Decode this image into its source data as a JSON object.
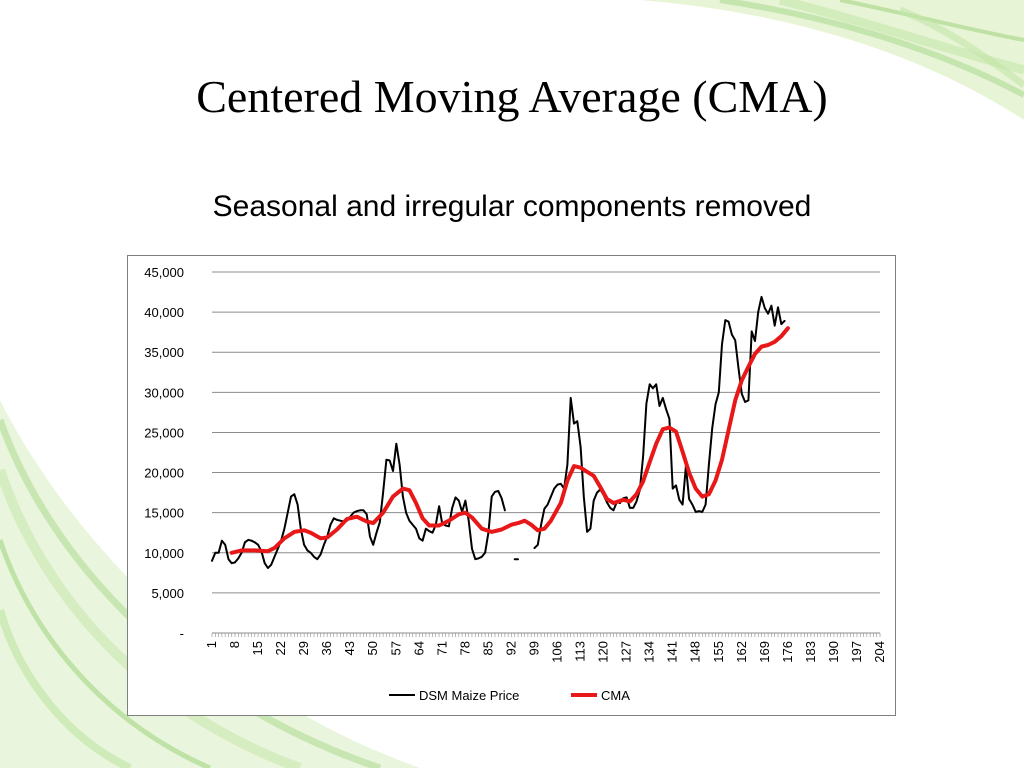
{
  "slide": {
    "title": "Centered Moving Average (CMA)",
    "subtitle": "Seasonal and irregular components removed"
  },
  "theme": {
    "accent_green": "#8cc63f",
    "light_green": "#d6eeb8"
  },
  "chart_data": {
    "type": "line",
    "ylim": [
      0,
      45000
    ],
    "yticks": [
      "-",
      "5,000",
      "10,000",
      "15,000",
      "20,000",
      "25,000",
      "30,000",
      "35,000",
      "40,000",
      "45,000"
    ],
    "xlim": [
      1,
      204
    ],
    "xticks": [
      1,
      8,
      15,
      22,
      29,
      36,
      43,
      50,
      57,
      64,
      71,
      78,
      85,
      92,
      99,
      106,
      113,
      120,
      127,
      134,
      141,
      148,
      155,
      162,
      169,
      176,
      183,
      190,
      197,
      204
    ],
    "grid": "horizontal",
    "legend_position": "bottom",
    "series": [
      {
        "name": "DSM Maize Price",
        "color": "#000000",
        "points": [
          [
            1,
            9000
          ],
          [
            2,
            10000
          ],
          [
            3,
            10000
          ],
          [
            4,
            11500
          ],
          [
            5,
            11000
          ],
          [
            6,
            9200
          ],
          [
            7,
            8700
          ],
          [
            8,
            8800
          ],
          [
            9,
            9300
          ],
          [
            10,
            10000
          ],
          [
            11,
            11300
          ],
          [
            12,
            11600
          ],
          [
            13,
            11500
          ],
          [
            14,
            11300
          ],
          [
            15,
            11000
          ],
          [
            16,
            10200
          ],
          [
            17,
            8700
          ],
          [
            18,
            8100
          ],
          [
            19,
            8500
          ],
          [
            20,
            9500
          ],
          [
            21,
            10500
          ],
          [
            22,
            11500
          ],
          [
            23,
            13000
          ],
          [
            24,
            15000
          ],
          [
            25,
            17000
          ],
          [
            26,
            17300
          ],
          [
            27,
            16000
          ],
          [
            28,
            13000
          ],
          [
            29,
            11000
          ],
          [
            30,
            10300
          ],
          [
            31,
            10000
          ],
          [
            32,
            9500
          ],
          [
            33,
            9200
          ],
          [
            34,
            9800
          ],
          [
            35,
            11000
          ],
          [
            36,
            12000
          ],
          [
            37,
            13500
          ],
          [
            38,
            14300
          ],
          [
            39,
            14100
          ],
          [
            40,
            14000
          ],
          [
            41,
            13900
          ],
          [
            42,
            14000
          ],
          [
            43,
            14500
          ],
          [
            44,
            15000
          ],
          [
            45,
            15200
          ],
          [
            46,
            15300
          ],
          [
            47,
            15300
          ],
          [
            48,
            14800
          ],
          [
            49,
            12000
          ],
          [
            50,
            11000
          ],
          [
            51,
            12500
          ],
          [
            52,
            13800
          ],
          [
            53,
            17500
          ],
          [
            54,
            21600
          ],
          [
            55,
            21500
          ],
          [
            56,
            20200
          ],
          [
            57,
            23600
          ],
          [
            58,
            21000
          ],
          [
            59,
            17000
          ],
          [
            60,
            15000
          ],
          [
            61,
            14000
          ],
          [
            62,
            13500
          ],
          [
            63,
            13000
          ],
          [
            64,
            11800
          ],
          [
            65,
            11500
          ],
          [
            66,
            13000
          ],
          [
            67,
            12700
          ],
          [
            68,
            12500
          ],
          [
            69,
            13500
          ],
          [
            70,
            15800
          ],
          [
            71,
            13600
          ],
          [
            72,
            13400
          ],
          [
            73,
            13300
          ],
          [
            74,
            15600
          ],
          [
            75,
            16900
          ],
          [
            76,
            16500
          ],
          [
            77,
            15100
          ],
          [
            78,
            16500
          ],
          [
            79,
            14000
          ],
          [
            80,
            10500
          ],
          [
            81,
            9200
          ],
          [
            82,
            9300
          ],
          [
            83,
            9500
          ],
          [
            84,
            10000
          ],
          [
            85,
            12500
          ],
          [
            86,
            17000
          ],
          [
            87,
            17600
          ],
          [
            88,
            17700
          ],
          [
            89,
            16800
          ],
          [
            90,
            15300
          ],
          null,
          [
            93,
            9200
          ],
          [
            94,
            9200
          ],
          null,
          [
            99,
            10600
          ],
          [
            100,
            11000
          ],
          [
            101,
            13500
          ],
          [
            102,
            15500
          ],
          [
            103,
            16000
          ],
          [
            104,
            17000
          ],
          [
            105,
            18000
          ],
          [
            106,
            18500
          ],
          [
            107,
            18600
          ],
          [
            108,
            18000
          ],
          [
            109,
            21000
          ],
          [
            110,
            29300
          ],
          [
            111,
            26100
          ],
          [
            112,
            26400
          ],
          [
            113,
            23200
          ],
          [
            114,
            17000
          ],
          [
            115,
            12600
          ],
          [
            116,
            13000
          ],
          [
            117,
            16500
          ],
          [
            118,
            17500
          ],
          [
            119,
            17900
          ],
          [
            120,
            17200
          ],
          [
            121,
            16300
          ],
          [
            122,
            15600
          ],
          [
            123,
            15300
          ],
          [
            124,
            16300
          ],
          [
            125,
            16200
          ],
          [
            126,
            16800
          ],
          [
            127,
            16900
          ],
          [
            128,
            15600
          ],
          [
            129,
            15600
          ],
          [
            130,
            16400
          ],
          [
            131,
            17800
          ],
          [
            132,
            22000
          ],
          [
            133,
            28600
          ],
          [
            134,
            31000
          ],
          [
            135,
            30500
          ],
          [
            136,
            31000
          ],
          [
            137,
            28300
          ],
          [
            138,
            29300
          ],
          [
            139,
            27900
          ],
          [
            140,
            26700
          ],
          [
            141,
            18000
          ],
          [
            142,
            18400
          ],
          [
            143,
            16600
          ],
          [
            144,
            16000
          ],
          [
            145,
            20800
          ],
          [
            146,
            16700
          ],
          [
            147,
            16000
          ],
          [
            148,
            15100
          ],
          [
            149,
            15200
          ],
          [
            150,
            15100
          ],
          [
            151,
            16000
          ],
          [
            152,
            21000
          ],
          [
            153,
            25500
          ],
          [
            154,
            28500
          ],
          [
            155,
            30000
          ],
          [
            156,
            36000
          ],
          [
            157,
            39000
          ],
          [
            158,
            38800
          ],
          [
            159,
            37200
          ],
          [
            160,
            36500
          ],
          [
            161,
            33000
          ],
          [
            162,
            29800
          ],
          [
            163,
            28800
          ],
          [
            164,
            29000
          ],
          [
            165,
            37600
          ],
          [
            166,
            36400
          ],
          [
            167,
            40000
          ],
          [
            168,
            41900
          ],
          [
            169,
            40500
          ],
          [
            170,
            39800
          ],
          [
            171,
            40800
          ],
          [
            172,
            38300
          ],
          [
            173,
            40600
          ],
          [
            174,
            38500
          ],
          [
            175,
            38900
          ]
        ]
      },
      {
        "name": "CMA",
        "color": "#e81818",
        "points": [
          [
            7,
            10000
          ],
          [
            10,
            10300
          ],
          [
            14,
            10300
          ],
          [
            18,
            10200
          ],
          [
            20,
            10600
          ],
          [
            23,
            11800
          ],
          [
            26,
            12600
          ],
          [
            29,
            12800
          ],
          [
            31,
            12500
          ],
          [
            34,
            11800
          ],
          [
            36,
            11900
          ],
          [
            39,
            12900
          ],
          [
            42,
            14200
          ],
          [
            45,
            14500
          ],
          [
            48,
            13900
          ],
          [
            50,
            13700
          ],
          [
            53,
            15000
          ],
          [
            56,
            17000
          ],
          [
            59,
            18000
          ],
          [
            61,
            17800
          ],
          [
            63,
            16200
          ],
          [
            65,
            14300
          ],
          [
            67,
            13400
          ],
          [
            70,
            13400
          ],
          [
            73,
            14000
          ],
          [
            76,
            14800
          ],
          [
            78,
            15000
          ],
          [
            80,
            14400
          ],
          [
            83,
            13000
          ],
          [
            86,
            12600
          ],
          [
            89,
            12900
          ],
          [
            92,
            13500
          ],
          [
            94,
            13700
          ],
          [
            96,
            14000
          ],
          [
            98,
            13500
          ],
          [
            100,
            12800
          ],
          [
            102,
            13000
          ],
          [
            104,
            14000
          ],
          [
            107,
            16200
          ],
          [
            109,
            19000
          ],
          [
            111,
            20800
          ],
          [
            113,
            20600
          ],
          [
            115,
            20100
          ],
          [
            117,
            19600
          ],
          [
            119,
            18200
          ],
          [
            121,
            16700
          ],
          [
            123,
            16200
          ],
          [
            126,
            16600
          ],
          [
            128,
            16400
          ],
          [
            130,
            17300
          ],
          [
            132,
            18900
          ],
          [
            134,
            21300
          ],
          [
            136,
            23600
          ],
          [
            138,
            25400
          ],
          [
            140,
            25600
          ],
          [
            142,
            25100
          ],
          [
            144,
            22600
          ],
          [
            146,
            20000
          ],
          [
            148,
            18000
          ],
          [
            150,
            17000
          ],
          [
            152,
            17300
          ],
          [
            154,
            19000
          ],
          [
            156,
            21600
          ],
          [
            158,
            25300
          ],
          [
            160,
            29000
          ],
          [
            162,
            31500
          ],
          [
            164,
            33200
          ],
          [
            166,
            34800
          ],
          [
            168,
            35700
          ],
          [
            170,
            35900
          ],
          [
            172,
            36300
          ],
          [
            174,
            37000
          ],
          [
            176,
            38000
          ]
        ]
      }
    ]
  }
}
